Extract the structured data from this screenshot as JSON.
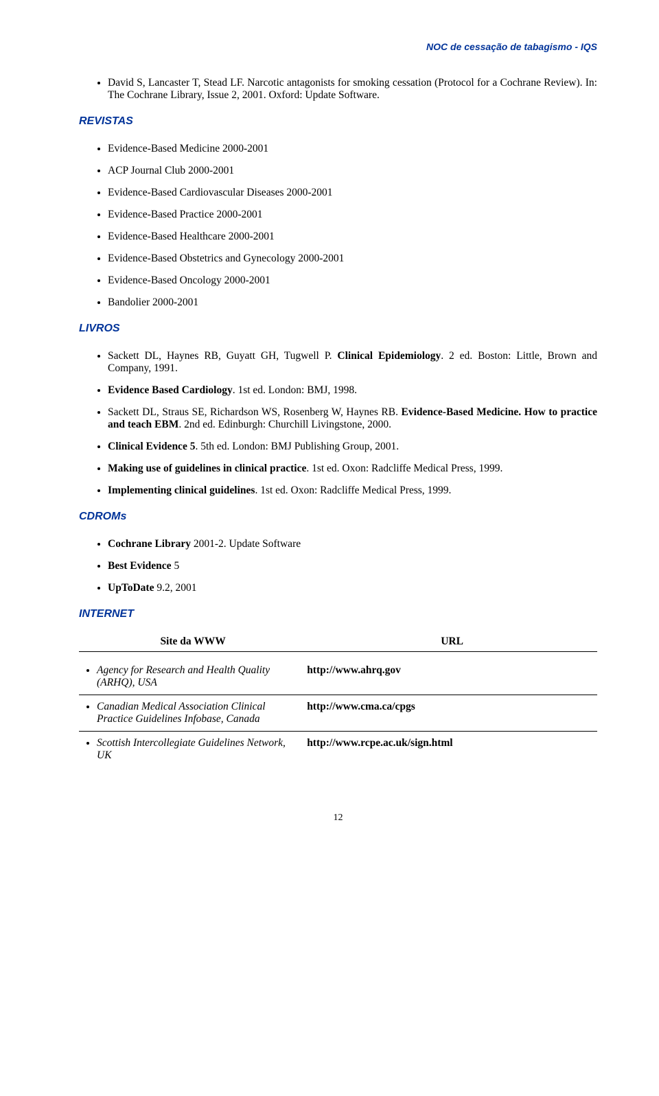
{
  "header": "NOC de cessação de tabagismo - IQS",
  "intro_bullet": "David S, Lancaster T, Stead LF. Narcotic antagonists for smoking cessation (Protocol for a Cochrane Review). In: The Cochrane Library, Issue 2, 2001. Oxford: Update Software.",
  "revistas": {
    "title": "REVISTAS",
    "items": [
      "Evidence-Based Medicine 2000-2001",
      "ACP Journal Club 2000-2001",
      "Evidence-Based Cardiovascular Diseases 2000-2001",
      "Evidence-Based Practice 2000-2001",
      "Evidence-Based Healthcare 2000-2001",
      "Evidence-Based Obstetrics and Gynecology 2000-2001",
      "Evidence-Based Oncology 2000-2001",
      "Bandolier 2000-2001"
    ]
  },
  "livros": {
    "title": "LIVROS",
    "items": [
      {
        "pre": "Sackett DL, Haynes RB, Guyatt GH, Tugwell P. ",
        "bold": "Clinical Epidemiology",
        "post": ". 2 ed. Boston: Little, Brown and Company, 1991."
      },
      {
        "pre": "",
        "bold": "Evidence Based Cardiology",
        "post": ". 1st ed. London: BMJ, 1998."
      },
      {
        "pre": "Sackett DL, Straus SE, Richardson WS, Rosenberg W, Haynes RB. ",
        "bold": "Evidence-Based Medicine. How to practice and teach EBM",
        "post": ". 2nd ed. Edinburgh: Churchill Livingstone, 2000."
      },
      {
        "pre": "",
        "bold": "Clinical Evidence 5",
        "post": ". 5th ed. London: BMJ Publishing Group, 2001."
      },
      {
        "pre": "",
        "bold": "Making use of guidelines in clinical practice",
        "post": ". 1st ed. Oxon: Radcliffe Medical Press, 1999."
      },
      {
        "pre": "",
        "bold": "Implementing clinical guidelines",
        "post": ". 1st ed. Oxon: Radcliffe Medical Press, 1999."
      }
    ]
  },
  "cdroms": {
    "title": "CDROMs",
    "items": [
      {
        "bold": "Cochrane Library",
        "post": " 2001-2. Update Software"
      },
      {
        "bold": "Best Evidence",
        "post": " 5"
      },
      {
        "bold": "UpToDate",
        "post": " 9.2, 2001"
      }
    ]
  },
  "internet": {
    "title": "INTERNET",
    "col1_header": "Site da WWW",
    "col2_header": "URL",
    "rows": [
      {
        "site": "Agency for Research and Health Quality (ARHQ), USA",
        "url": "http://www.ahrq.gov"
      },
      {
        "site": "Canadian Medical Association Clinical Practice Guidelines Infobase, Canada",
        "url": "http://www.cma.ca/cpgs"
      },
      {
        "site": "Scottish Intercollegiate Guidelines Network, UK",
        "url": "http://www.rcpe.ac.uk/sign.html"
      }
    ]
  },
  "page_number": "12"
}
